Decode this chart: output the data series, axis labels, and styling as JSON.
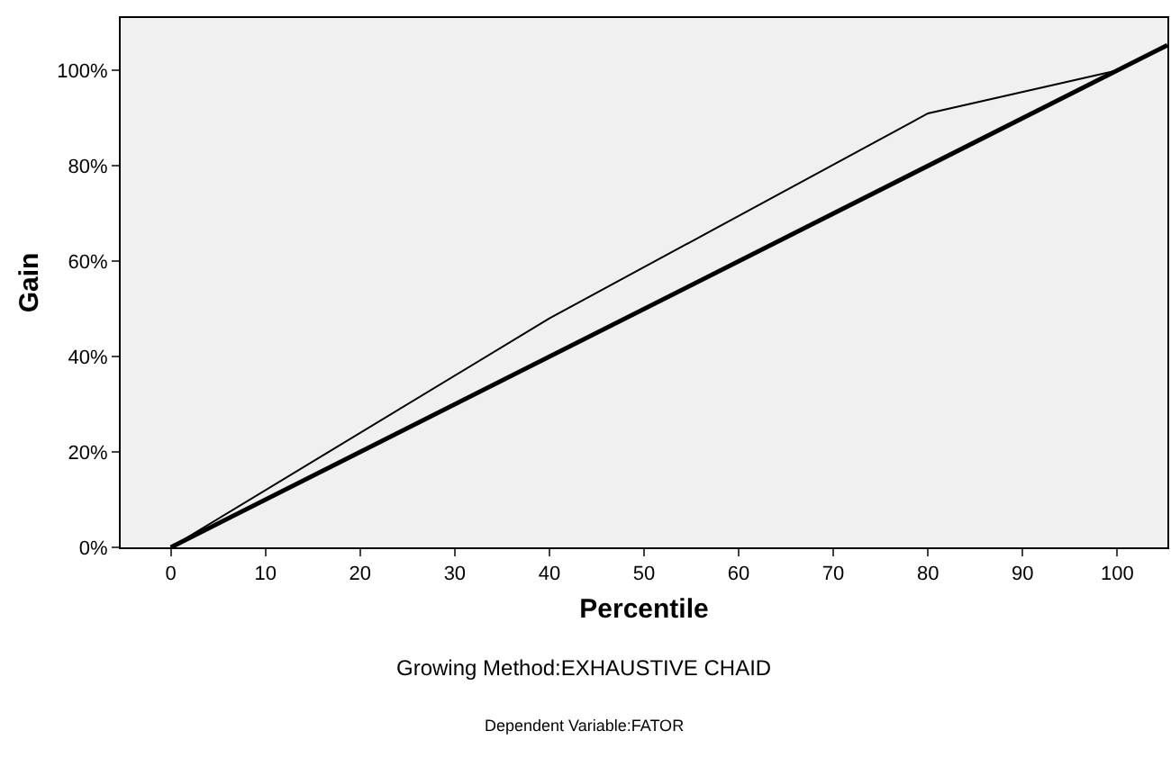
{
  "chart_data": {
    "type": "line",
    "xlabel": "Percentile",
    "ylabel": "Gain",
    "series": [
      {
        "color": "#000000",
        "x": [
          0,
          40,
          80,
          100
        ],
        "values": [
          0,
          48,
          91,
          100
        ]
      },
      {
        "color": "#000000",
        "x": [
          0,
          105.3
        ],
        "values": [
          0,
          105.3
        ]
      }
    ],
    "xlim": [
      -5.3,
      105.3
    ],
    "ylim": [
      0,
      111
    ],
    "xticks": [
      0,
      10,
      20,
      30,
      40,
      50,
      60,
      70,
      80,
      90,
      100
    ],
    "yticks": [
      {
        "value": 0,
        "label": "0%"
      },
      {
        "value": 20,
        "label": "20%"
      },
      {
        "value": 40,
        "label": "40%"
      },
      {
        "value": 60,
        "label": "60%"
      },
      {
        "value": 80,
        "label": "80%"
      },
      {
        "value": 100,
        "label": "100%"
      }
    ],
    "grid": false,
    "marker": "none",
    "line_style": "solid",
    "annotations": [
      "Growing Method:EXHAUSTIVE CHAID",
      "Dependent Variable:FATOR"
    ]
  }
}
